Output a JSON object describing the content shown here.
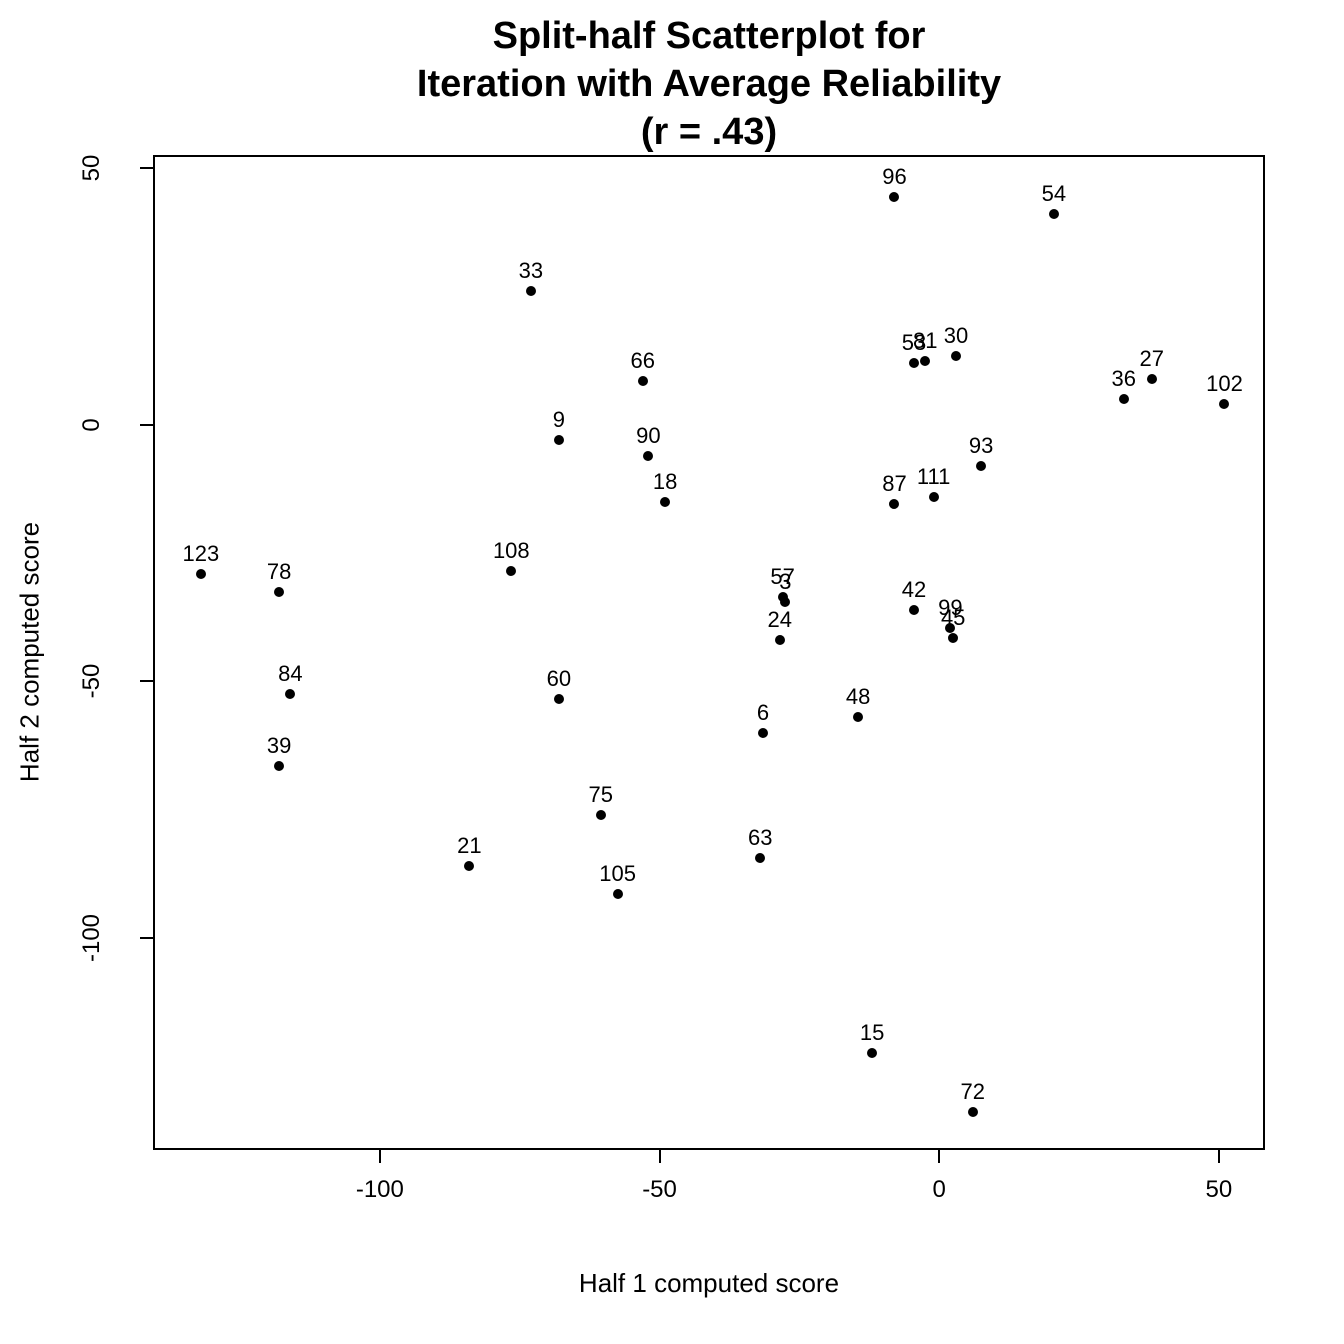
{
  "chart_data": {
    "type": "scatter",
    "title": "Split-half Scatterplot for\nIteration with Average Reliability\n(r = .43)",
    "xlabel": "Half 1 computed score",
    "ylabel": "Half 2 computed score",
    "xlim": [
      -140.2,
      58.6
    ],
    "ylim": [
      -141.7,
      52.2
    ],
    "x_ticks": [
      -100,
      -50,
      0,
      50
    ],
    "y_ticks": [
      50,
      0,
      -50,
      -100
    ],
    "grid": false,
    "legend": "none",
    "point_color": "#000000",
    "background_color": "#ffffff",
    "points": [
      {
        "label": "96",
        "x": -8,
        "y": 44.5
      },
      {
        "label": "54",
        "x": 20.5,
        "y": 41
      },
      {
        "label": "33",
        "x": -73,
        "y": 26
      },
      {
        "label": "30",
        "x": 3,
        "y": 13.5
      },
      {
        "label": "81",
        "x": -2.5,
        "y": 12.5
      },
      {
        "label": "53",
        "x": -4.5,
        "y": 12
      },
      {
        "label": "27",
        "x": 38,
        "y": 9
      },
      {
        "label": "66",
        "x": -53,
        "y": 8.5
      },
      {
        "label": "36",
        "x": 33,
        "y": 5
      },
      {
        "label": "102",
        "x": 51,
        "y": 4
      },
      {
        "label": "9",
        "x": -68,
        "y": -3
      },
      {
        "label": "90",
        "x": -52,
        "y": -6
      },
      {
        "label": "93",
        "x": 7.5,
        "y": -8
      },
      {
        "label": "111",
        "x": -1,
        "y": -14
      },
      {
        "label": "18",
        "x": -49,
        "y": -15
      },
      {
        "label": "87",
        "x": -8,
        "y": -15.5
      },
      {
        "label": "108",
        "x": -76.5,
        "y": -28.5
      },
      {
        "label": "123",
        "x": -132,
        "y": -29
      },
      {
        "label": "78",
        "x": -118,
        "y": -32.5
      },
      {
        "label": "57",
        "x": -28,
        "y": -33.5
      },
      {
        "label": "3",
        "x": -27.5,
        "y": -34.5
      },
      {
        "label": "42",
        "x": -4.5,
        "y": -36
      },
      {
        "label": "99",
        "x": 2,
        "y": -39.5
      },
      {
        "label": "45",
        "x": 2.5,
        "y": -41.5
      },
      {
        "label": "24",
        "x": -28.5,
        "y": -42
      },
      {
        "label": "84",
        "x": -116,
        "y": -52.5
      },
      {
        "label": "60",
        "x": -68,
        "y": -53.5
      },
      {
        "label": "48",
        "x": -14.5,
        "y": -57
      },
      {
        "label": "6",
        "x": -31.5,
        "y": -60
      },
      {
        "label": "39",
        "x": -118,
        "y": -66.5
      },
      {
        "label": "75",
        "x": -60.5,
        "y": -76
      },
      {
        "label": "63",
        "x": -32,
        "y": -84.5
      },
      {
        "label": "21",
        "x": -84,
        "y": -86
      },
      {
        "label": "105",
        "x": -57.5,
        "y": -91.5
      },
      {
        "label": "15",
        "x": -12,
        "y": -122.5
      },
      {
        "label": "72",
        "x": 6,
        "y": -134
      }
    ]
  }
}
